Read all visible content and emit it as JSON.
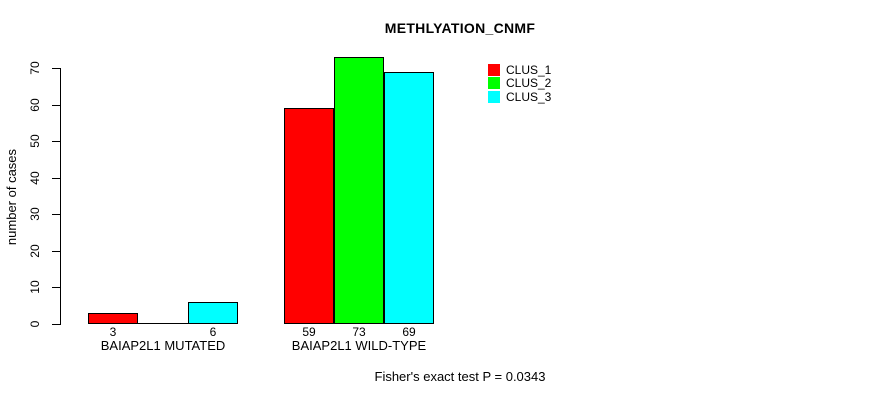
{
  "title": "METHLYATION_CNMF",
  "footer": "Fisher's exact test P = 0.0343",
  "colors": {
    "background": "#ffffff",
    "axis": "#000000",
    "bar_border": "#000000",
    "clus_1": "#ff0000",
    "clus_2": "#00ff00",
    "clus_3": "#00ffff"
  },
  "legend": {
    "position": "top-right",
    "items": [
      {
        "label": "CLUS_1",
        "color": "#ff0000"
      },
      {
        "label": "CLUS_2",
        "color": "#00ff00"
      },
      {
        "label": "CLUS_3",
        "color": "#00ffff"
      }
    ]
  },
  "chart_data": {
    "type": "bar",
    "title": "METHLYATION_CNMF",
    "xlabel": "",
    "ylabel": "number of cases",
    "categories": [
      "BAIAP2L1 MUTATED",
      "BAIAP2L1 WILD-TYPE"
    ],
    "series": [
      {
        "name": "CLUS_1",
        "color": "#ff0000",
        "values": [
          3,
          59
        ]
      },
      {
        "name": "CLUS_2",
        "color": "#00ff00",
        "values": [
          0,
          73
        ]
      },
      {
        "name": "CLUS_3",
        "color": "#00ffff",
        "values": [
          6,
          69
        ]
      }
    ],
    "ylim": [
      0,
      70
    ],
    "yticks": [
      0,
      10,
      20,
      30,
      40,
      50,
      60,
      70
    ],
    "grid": false,
    "bar_value_labels": [
      [
        "3",
        "",
        "6"
      ],
      [
        "59",
        "73",
        "69"
      ]
    ],
    "legend_position": "top-right",
    "annotation": "Fisher's exact test P = 0.0343"
  }
}
